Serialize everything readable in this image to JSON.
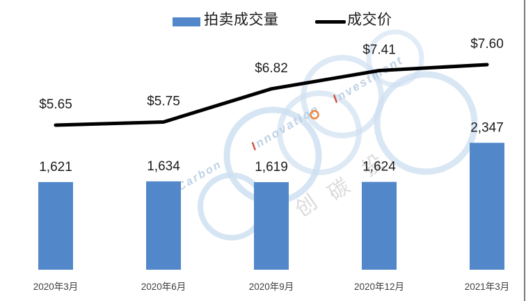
{
  "chart_data": {
    "type": "combo",
    "title": "",
    "categories": [
      "2020年3月",
      "2020年6月",
      "2020年9月",
      "2020年12月",
      "2021年3月"
    ],
    "series": [
      {
        "name": "拍卖成交量",
        "chart_type": "bar",
        "values": [
          1621,
          1634,
          1619,
          1624,
          2347
        ],
        "value_labels": [
          "1,621",
          "1,634",
          "1,619",
          "1,624",
          "2,347"
        ],
        "color": "#5287ca"
      },
      {
        "name": "成交价",
        "chart_type": "line",
        "values": [
          5.65,
          5.75,
          6.82,
          7.41,
          7.6
        ],
        "value_labels": [
          "$5.65",
          "$5.75",
          "$6.82",
          "$7.41",
          "$7.60"
        ],
        "color": "#000000"
      }
    ],
    "legend_position": "top-center",
    "grid": false,
    "axes": {
      "x_labels_visible": true,
      "y_axis_visible": false
    }
  },
  "watermark": {
    "en_word_1": "SinoCarbon",
    "en_word_2": "Innovation",
    "en_word_3": "Investment",
    "cn_text": "中创碳投",
    "ring_color": "#cfe0f1",
    "text_color": "#b7cde4",
    "first_letter_color": "#cf3a2b",
    "separator_color": "#ed7d31",
    "cn_color": "#d9d9d9"
  },
  "colors": {
    "bar_label": "#1a1a1a",
    "price_label": "#1a1a1a",
    "x_label": "#404040",
    "screen_edge": "#484848"
  }
}
